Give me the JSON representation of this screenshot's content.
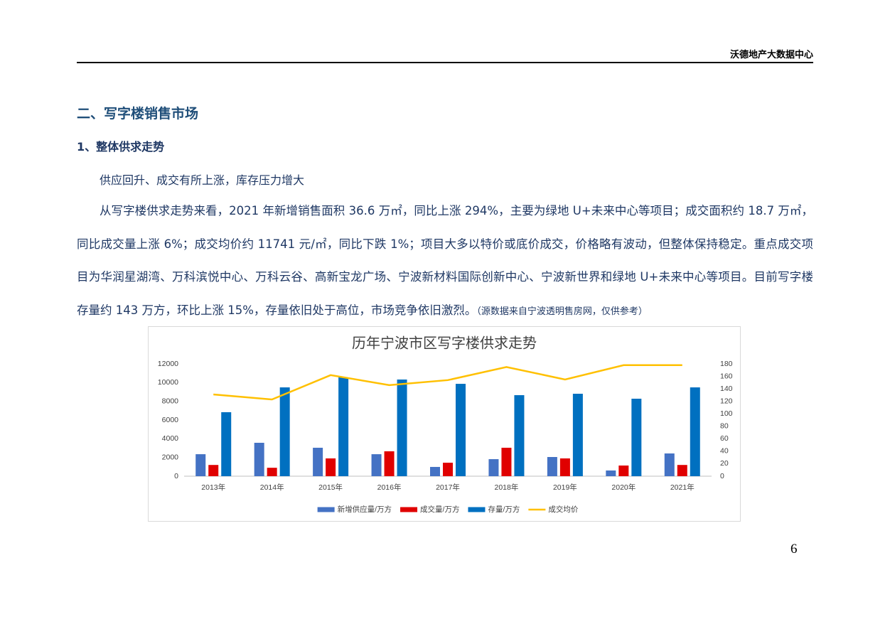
{
  "document": {
    "header": "沃德地产大数据中心",
    "section_title": "二、写字楼销售市场",
    "subsection_title": "1、整体供求走势",
    "paragraphs": [
      "供应回升、成交有所上涨，库存压力增大",
      "从写字楼供求走势来看，2021 年新增销售面积 36.6 万㎡，同比上涨 294%，主要为绿地 U+未来中心等项目；成交面积约 18.7 万㎡，同比成交量上涨 6%；成交均价约 11741 元/㎡，同比下跌 1%；项目大多以特价或底价成交，价格略有波动，但整体保持稳定。重点成交项目为华润星湖湾、万科滨悦中心、万科云谷、高新宝龙广场、宁波新材料国际创新中心、宁波新世界和绿地 U+未来中心等项目。目前写字楼存量约 143 万方，环比上涨 15%，存量依旧处于高位，市场竞争依旧激烈。"
    ],
    "source_note": "（源数据来自宁波透明售房网，仅供参考）",
    "page_number": 6
  },
  "chart_data": {
    "type": "bar",
    "title": "历年宁波市区写字楼供求走势",
    "categories": [
      "2013年",
      "2014年",
      "2015年",
      "2016年",
      "2017年",
      "2018年",
      "2019年",
      "2020年",
      "2021年"
    ],
    "series": [
      {
        "name": "新增供应量/万方",
        "color": "#4472c4",
        "values": [
          2350,
          3570,
          3040,
          2350,
          990,
          1820,
          2050,
          610,
          2430
        ]
      },
      {
        "name": "成交量/万方",
        "color": "#e00000",
        "values": [
          1200,
          900,
          1900,
          2660,
          1440,
          3040,
          1900,
          1140,
          1200
        ]
      },
      {
        "name": "存量/万方",
        "color": "#0070c0",
        "values": [
          6840,
          9490,
          10560,
          10330,
          9870,
          8660,
          8810,
          8280,
          9490
        ]
      },
      {
        "name": "成交均价",
        "color": "#ffc000",
        "type": "line",
        "axis": "y2",
        "values": [
          131,
          123,
          162,
          146,
          154,
          175,
          155,
          178,
          178
        ]
      }
    ],
    "ylim": [
      0,
      12000
    ],
    "yticks": [
      0,
      2000,
      4000,
      6000,
      8000,
      10000,
      12000
    ],
    "y2lim": [
      0,
      180
    ],
    "y2ticks": [
      0,
      20,
      40,
      60,
      80,
      100,
      120,
      140,
      160,
      180
    ],
    "legend": "bottom",
    "grid": false
  }
}
